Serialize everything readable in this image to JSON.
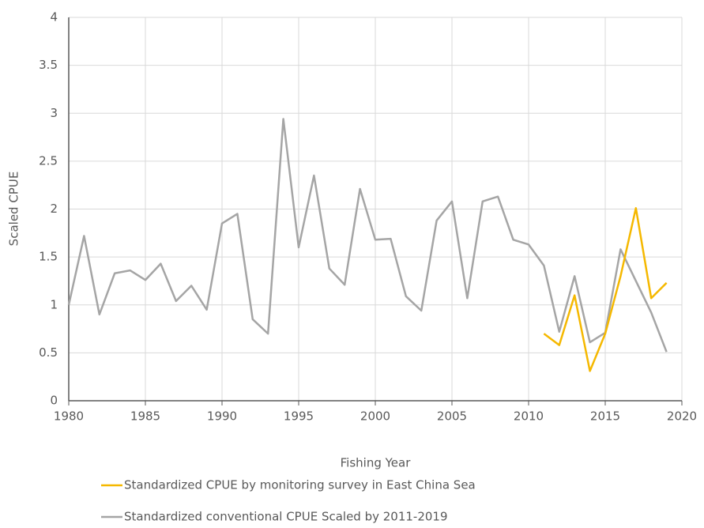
{
  "chart_data": {
    "type": "line",
    "xlabel": "Fishing Year",
    "ylabel": "Scaled CPUE",
    "x": [
      1980,
      1981,
      1982,
      1983,
      1984,
      1985,
      1986,
      1987,
      1988,
      1989,
      1990,
      1991,
      1992,
      1993,
      1994,
      1995,
      1996,
      1997,
      1998,
      1999,
      2000,
      2001,
      2002,
      2003,
      2004,
      2005,
      2006,
      2007,
      2008,
      2009,
      2010,
      2011,
      2012,
      2013,
      2014,
      2015,
      2016,
      2017,
      2018,
      2019
    ],
    "series": [
      {
        "name": "Standardized CPUE by monitoring survey in East China Sea",
        "color": "#f5b800",
        "values": [
          null,
          null,
          null,
          null,
          null,
          null,
          null,
          null,
          null,
          null,
          null,
          null,
          null,
          null,
          null,
          null,
          null,
          null,
          null,
          null,
          null,
          null,
          null,
          null,
          null,
          null,
          null,
          null,
          null,
          null,
          null,
          0.7,
          0.58,
          1.1,
          0.31,
          0.7,
          1.3,
          2.01,
          1.07,
          1.23
        ]
      },
      {
        "name": "Standardized conventional CPUE Scaled by 2011-2019",
        "color": "#a5a5a5",
        "values": [
          1.0,
          1.72,
          0.9,
          1.33,
          1.36,
          1.26,
          1.43,
          1.04,
          1.2,
          0.95,
          1.85,
          1.95,
          0.85,
          0.7,
          2.94,
          1.6,
          2.35,
          1.38,
          1.21,
          2.21,
          1.68,
          1.69,
          1.09,
          0.94,
          1.88,
          2.08,
          1.07,
          2.08,
          2.13,
          1.68,
          1.63,
          1.41,
          0.72,
          1.3,
          0.61,
          0.71,
          1.58,
          1.25,
          0.92,
          0.51
        ]
      }
    ],
    "xlim": [
      1980,
      2020
    ],
    "xticks": [
      1980,
      1985,
      1990,
      1995,
      2000,
      2005,
      2010,
      2015,
      2020
    ],
    "ylim": [
      0,
      4
    ],
    "yticks": [
      0,
      0.5,
      1,
      1.5,
      2,
      2.5,
      3,
      3.5,
      4
    ],
    "grid": true,
    "legend": "bottom"
  }
}
